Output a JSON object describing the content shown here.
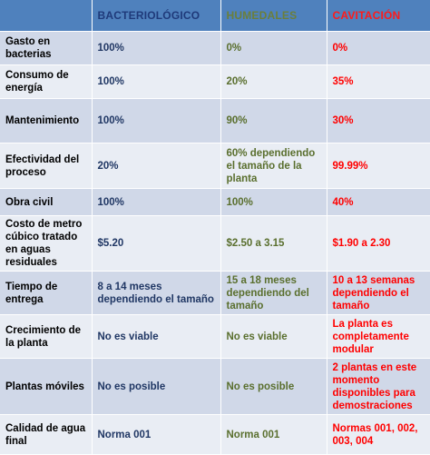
{
  "headers": [
    "",
    "BACTERIOLÓGICO",
    "HUMEDALES",
    "CAVITACIÓN"
  ],
  "rows": [
    {
      "label": "Gasto en bacterias",
      "bact": "100%",
      "hum": "0%",
      "cav": "0%"
    },
    {
      "label": "Consumo de energía",
      "bact": "100%",
      "hum": "20%",
      "cav": "35%"
    },
    {
      "label": "Mantenimiento",
      "bact": "100%",
      "hum": "90%",
      "cav": "30%"
    },
    {
      "label": "Efectividad del proceso",
      "bact": "20%",
      "hum": "60% dependiendo el tamaño de la planta",
      "cav": "99.99%"
    },
    {
      "label": "Obra civil",
      "bact": "100%",
      "hum": "100%",
      "cav": "40%"
    },
    {
      "label": "Costo de metro cúbico tratado en aguas residuales",
      "bact": "$5.20",
      "hum": "$2.50 a 3.15",
      "cav": "$1.90 a 2.30"
    },
    {
      "label": "Tiempo de entrega",
      "bact": "8 a 14 meses dependiendo el tamaño",
      "hum": "15 a 18 meses dependiendo del tamaño",
      "cav": "10 a 13 semanas dependiendo el tamaño"
    },
    {
      "label": "Crecimiento de la planta",
      "bact": "No es viable",
      "hum": "No es viable",
      "cav": "La planta es completamente modular"
    },
    {
      "label": "Plantas móviles",
      "bact": "No es posible",
      "hum": "No es posible",
      "cav": "2 plantas en este momento disponibles para demostraciones"
    },
    {
      "label": "Calidad de agua final",
      "bact": "Norma 001",
      "hum": "Norma 001",
      "cav": "Normas 001, 002, 003, 004"
    }
  ],
  "colors": {
    "header_bg": "#4f81bd",
    "row_dark": "#d0d8e8",
    "row_light": "#e9edf4",
    "bacteriologico": "#203764",
    "humedales": "#5a6f2e",
    "cavitacion": "#ff0000"
  }
}
